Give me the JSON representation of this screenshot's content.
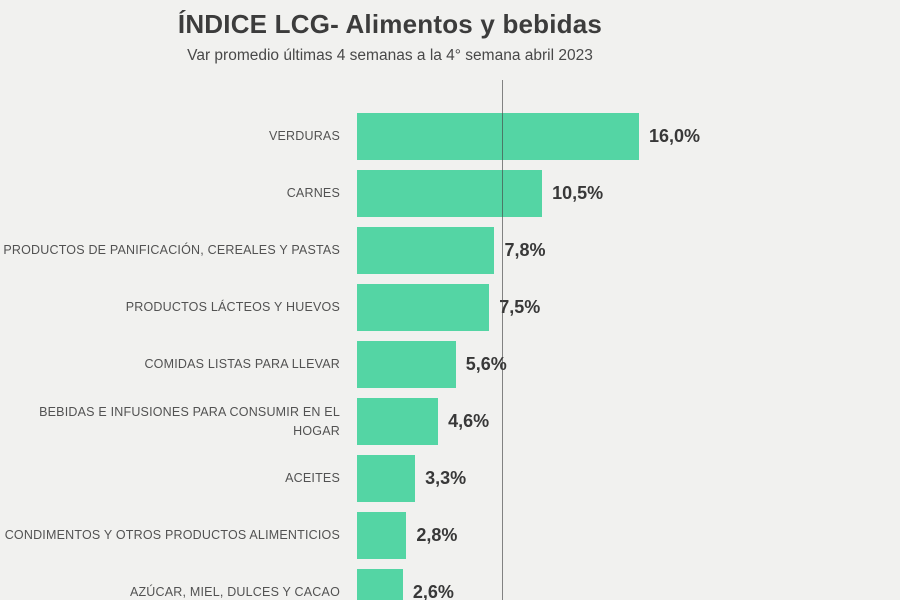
{
  "chart_data": {
    "type": "bar",
    "orientation": "horizontal",
    "title": "ÍNDICE LCG- Alimentos y bebidas",
    "subtitle": "Var promedio últimas 4 semanas a la 4° semana abril 2023",
    "categories": [
      "VERDURAS",
      "CARNES",
      "PRODUCTOS DE PANIFICACIÓN, CEREALES Y PASTAS",
      "PRODUCTOS LÁCTEOS Y HUEVOS",
      "COMIDAS LISTAS PARA LLEVAR",
      "BEBIDAS E INFUSIONES PARA CONSUMIR EN EL HOGAR",
      "ACEITES",
      "CONDIMENTOS Y OTROS PRODUCTOS ALIMENTICIOS",
      "AZÚCAR, MIEL, DULCES Y CACAO"
    ],
    "values": [
      16.0,
      10.5,
      7.8,
      7.5,
      5.6,
      4.6,
      3.3,
      2.8,
      2.6
    ],
    "value_labels": [
      "16,0%",
      "10,5%",
      "7,8%",
      "7,5%",
      "5,6%",
      "4,6%",
      "3,3%",
      "2,8%",
      "2,6%"
    ],
    "xlabel": "",
    "ylabel": "",
    "xlim": [
      0,
      16
    ],
    "grid": false,
    "legend": false,
    "reference_line_value": 8.2,
    "colors": {
      "bar": "#54d5a4",
      "background": "#f1f1ef",
      "title": "#3c3c3c",
      "category_label": "#525252",
      "value_label": "#383838",
      "reference_line": "#464646"
    }
  }
}
